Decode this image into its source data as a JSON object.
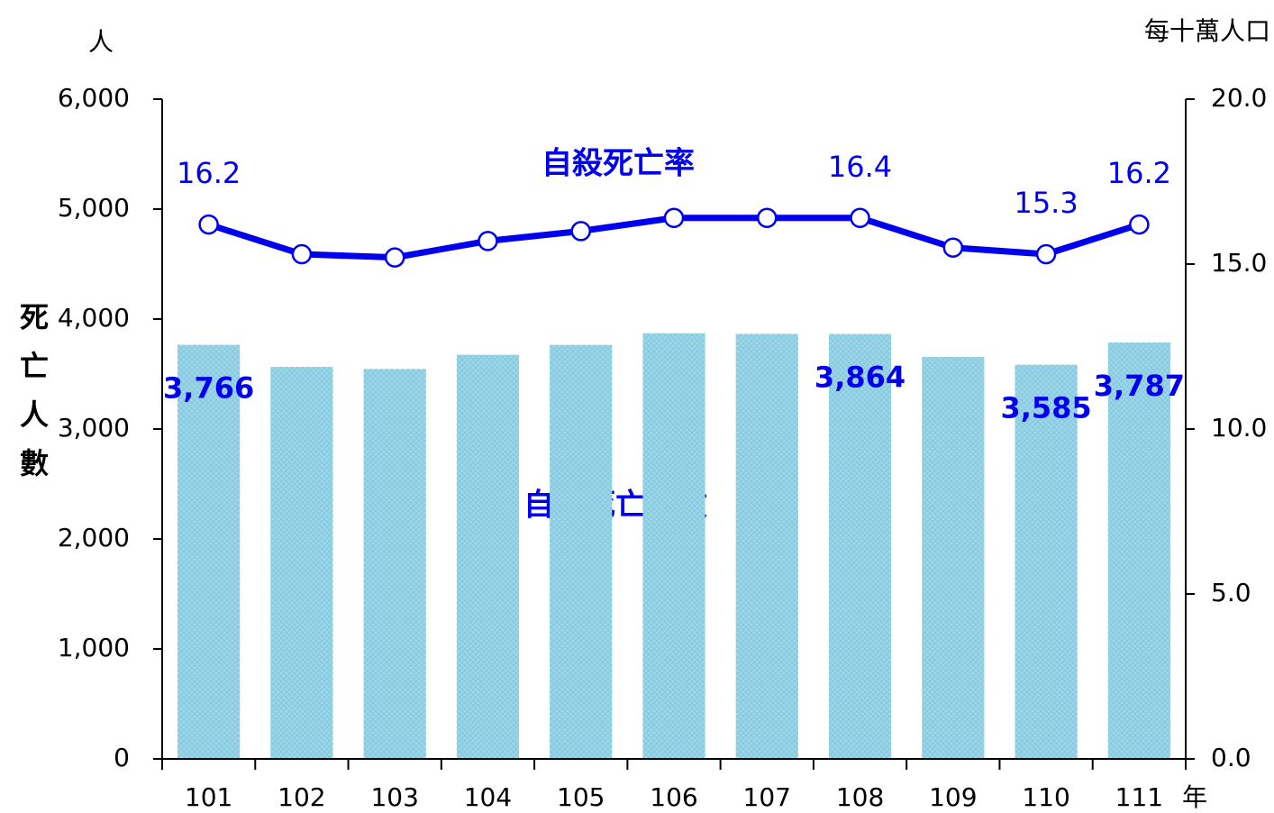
{
  "chart_data": {
    "type": "bar_line",
    "categories": [
      "101",
      "102",
      "103",
      "104",
      "105",
      "106",
      "107",
      "108",
      "109",
      "110",
      "111"
    ],
    "x_label": "年",
    "y_label": "死亡人數",
    "y_unit": "人",
    "y2_unit": "每十萬人口",
    "series": [
      {
        "name": "自殺死亡人數",
        "type": "bar",
        "color": "#9ed6e9",
        "label_color": "#0000ee",
        "values": [
          3766,
          3565,
          3546,
          3675,
          3765,
          3871,
          3865,
          3864,
          3656,
          3585,
          3787
        ],
        "value_labels": [
          "3,766",
          null,
          null,
          null,
          null,
          null,
          null,
          "3,864",
          null,
          "3,585",
          "3,787"
        ]
      },
      {
        "name": "自殺死亡率",
        "type": "line",
        "axis": "y2",
        "color": "#0000ee",
        "values": [
          16.2,
          15.3,
          15.2,
          15.7,
          16.0,
          16.4,
          16.4,
          16.4,
          15.5,
          15.3,
          16.2
        ],
        "value_labels": [
          "16.2",
          null,
          null,
          null,
          null,
          null,
          null,
          "16.4",
          null,
          "15.3",
          "16.2"
        ]
      }
    ],
    "ylim": [
      0,
      6000
    ],
    "yticks": [
      0,
      {
        "value": 1000,
        "label": "1,000"
      },
      {
        "value": 2000,
        "label": "2,000"
      },
      {
        "value": 3000,
        "label": "3,000"
      },
      {
        "value": 4000,
        "label": "4,000"
      },
      {
        "value": 5000,
        "label": "5,000"
      },
      {
        "value": 6000,
        "label": "6,000"
      }
    ],
    "y2lim": [
      0,
      20
    ],
    "y2ticks": [
      {
        "value": 0,
        "label": "0.0"
      },
      {
        "value": 5,
        "label": "5.0"
      },
      {
        "value": 10,
        "label": "10.0"
      },
      {
        "value": 15,
        "label": "15.0"
      },
      {
        "value": 20,
        "label": "20.0"
      }
    ]
  }
}
